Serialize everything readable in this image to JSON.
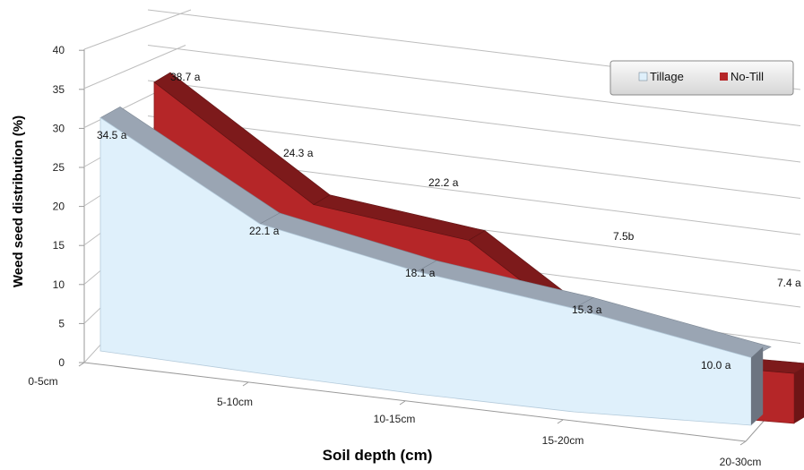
{
  "chart_data": {
    "type": "area",
    "categories": [
      "0-5cm",
      "5-10cm",
      "10-15cm",
      "15-20cm",
      "20-30cm"
    ],
    "series": [
      {
        "name": "Tillage",
        "values": [
          34.5,
          22.1,
          18.1,
          15.3,
          10.0
        ],
        "labels": [
          "34.5  a",
          "22.1  a",
          "18.1  a",
          "15.3  a",
          "10.0  a"
        ],
        "color": "#dff0fb"
      },
      {
        "name": "No-Till",
        "values": [
          38.7,
          24.3,
          22.2,
          7.5,
          7.4
        ],
        "labels": [
          "38.7  a",
          "24.3  a",
          "22.2  a",
          "7.5b",
          "7.4  a"
        ],
        "color": "#b52628"
      }
    ],
    "xlabel": "Soil depth (cm)",
    "ylabel": "Weed seed distribution (%)",
    "yticks": [
      "0",
      "5",
      "10",
      "15",
      "20",
      "25",
      "30",
      "35",
      "40"
    ],
    "ylim": [
      0,
      40
    ],
    "grid": true,
    "legend": "top-right",
    "three_d": true
  }
}
